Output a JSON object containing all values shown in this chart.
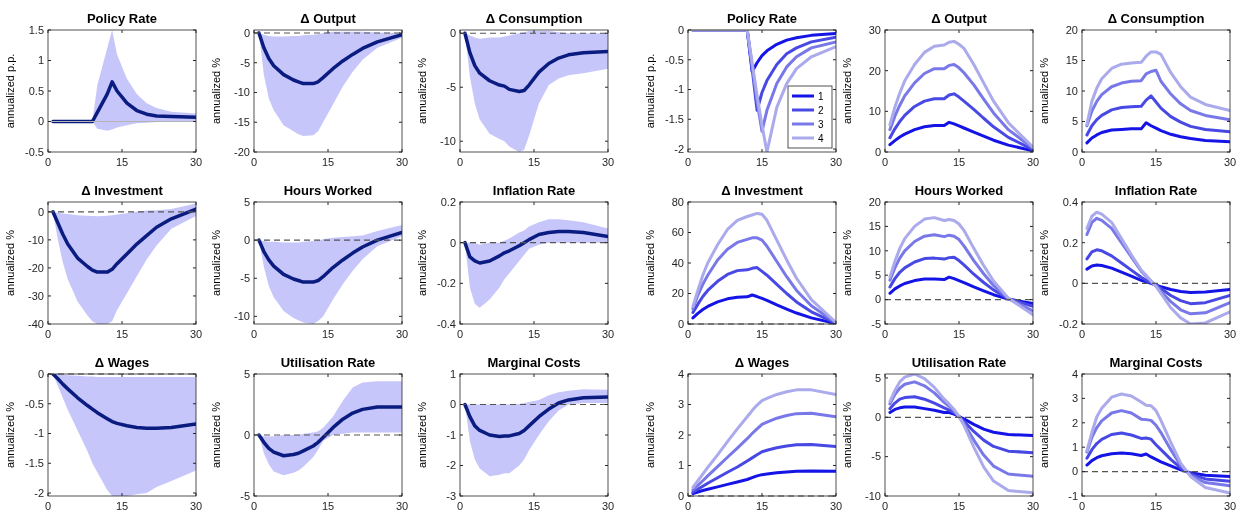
{
  "chart_data": [
    {
      "type": "line",
      "title": "Policy Rate",
      "ylabel": "annualized p.p.",
      "x": [
        1,
        2,
        3,
        4,
        6,
        8,
        9,
        10,
        12,
        13,
        14,
        16,
        18,
        20,
        22,
        25,
        30
      ],
      "xlim": [
        0,
        30
      ],
      "xticks": [
        0,
        15,
        30
      ],
      "ylim": [
        -0.5,
        1.5
      ],
      "yticks": [
        -0.5,
        0,
        0.5,
        1,
        1.5
      ],
      "ref_lines": [
        {
          "axis": "y",
          "value": 0,
          "color": "#b4b4b4",
          "line_style": "solid"
        }
      ],
      "series": [
        {
          "color": "#0b1c80",
          "values": [
            0,
            0,
            0,
            0,
            0,
            0,
            0,
            0.15,
            0.45,
            0.65,
            0.5,
            0.3,
            0.18,
            0.12,
            0.09,
            0.08,
            0.07
          ],
          "lower": [
            0,
            0,
            0,
            0,
            0,
            0,
            0,
            -0.12,
            -0.15,
            -0.13,
            -0.1,
            -0.06,
            -0.03,
            -0.02,
            -0.01,
            -0.01,
            -0.01
          ],
          "upper": [
            0,
            0,
            0,
            0,
            0,
            0,
            0,
            0.6,
            1.2,
            1.5,
            1.1,
            0.7,
            0.45,
            0.3,
            0.22,
            0.16,
            0.13
          ]
        }
      ]
    },
    {
      "type": "line",
      "title": "Δ Output",
      "ylabel": "annualized %",
      "x": [
        1,
        2,
        3,
        4,
        6,
        8,
        9,
        10,
        12,
        13,
        14,
        16,
        18,
        20,
        22,
        25,
        30
      ],
      "xlim": [
        0,
        30
      ],
      "xticks": [
        0,
        15,
        30
      ],
      "ylim": [
        -20,
        0.5
      ],
      "yticks": [
        -20,
        -15,
        -10,
        -5,
        0
      ],
      "ref_lines": [
        {
          "axis": "y",
          "value": 0,
          "color": "#555555",
          "line_style": "dashed"
        }
      ],
      "series": [
        {
          "color": "#0b1c80",
          "values": [
            0,
            -2.5,
            -4.3,
            -5.5,
            -7,
            -7.9,
            -8.2,
            -8.5,
            -8.5,
            -8.2,
            -7.5,
            -6,
            -4.7,
            -3.6,
            -2.6,
            -1.5,
            -0.3
          ],
          "lower": [
            0,
            -7,
            -11,
            -13,
            -15.5,
            -16.5,
            -17,
            -17.3,
            -17.2,
            -16.5,
            -15,
            -12,
            -9,
            -6.5,
            -4.5,
            -2.5,
            -0.8
          ],
          "upper": [
            0,
            -0.3,
            -0.5,
            -0.6,
            -0.6,
            -0.5,
            -0.5,
            -0.4,
            -0.3,
            -0.2,
            0,
            0.2,
            0.2,
            0.2,
            0.2,
            0.1,
            0
          ]
        }
      ]
    },
    {
      "type": "line",
      "title": "Δ Consumption",
      "ylabel": "annualized %",
      "x": [
        1,
        2,
        3,
        4,
        6,
        8,
        9,
        10,
        12,
        13,
        14,
        16,
        18,
        20,
        22,
        25,
        30
      ],
      "xlim": [
        0,
        30
      ],
      "xticks": [
        0,
        15,
        30
      ],
      "ylim": [
        -11,
        0.3
      ],
      "yticks": [
        -10,
        -5,
        0
      ],
      "ref_lines": [
        {
          "axis": "y",
          "value": 0,
          "color": "#555555",
          "line_style": "dashed"
        }
      ],
      "series": [
        {
          "color": "#0b1c80",
          "values": [
            0,
            -1.8,
            -3,
            -3.7,
            -4.4,
            -4.8,
            -4.9,
            -5.2,
            -5.4,
            -5.3,
            -4.8,
            -3.6,
            -2.8,
            -2.3,
            -2,
            -1.8,
            -1.7
          ],
          "lower": [
            0,
            -4,
            -6.5,
            -8,
            -9.3,
            -9.8,
            -10,
            -10.5,
            -11,
            -10.8,
            -9.5,
            -6.5,
            -4.8,
            -4.2,
            -3.9,
            -3.7,
            -3.3
          ],
          "upper": [
            0,
            -0.2,
            -0.4,
            -0.5,
            -0.4,
            -0.4,
            -0.3,
            -0.2,
            0,
            0.1,
            0.2,
            0.2,
            0.2,
            0.1,
            0,
            0,
            0
          ]
        }
      ]
    },
    {
      "type": "line",
      "title": "Δ Investment",
      "ylabel": "annualized %",
      "x": [
        1,
        2,
        3,
        4,
        6,
        8,
        9,
        10,
        12,
        13,
        14,
        16,
        18,
        20,
        22,
        25,
        30
      ],
      "xlim": [
        0,
        30
      ],
      "xticks": [
        0,
        15,
        30
      ],
      "ylim": [
        -40,
        3.5
      ],
      "yticks": [
        -40,
        -30,
        -20,
        -10,
        0
      ],
      "ref_lines": [
        {
          "axis": "y",
          "value": 0,
          "color": "#555555",
          "line_style": "dashed"
        }
      ],
      "series": [
        {
          "color": "#0b1c80",
          "values": [
            0,
            -4,
            -8,
            -11.5,
            -16.5,
            -19.5,
            -20.8,
            -21.5,
            -21.5,
            -20.5,
            -18.5,
            -15,
            -11.5,
            -8.5,
            -5.5,
            -2.5,
            1
          ],
          "lower": [
            0,
            -10,
            -18,
            -24,
            -32,
            -37,
            -39,
            -40,
            -40,
            -39,
            -35,
            -29,
            -23,
            -17,
            -12,
            -6,
            -1.5
          ],
          "upper": [
            0,
            -0.3,
            -0.6,
            -0.8,
            -1.2,
            -1.4,
            -1.5,
            -1.6,
            -1.4,
            -1.2,
            -1,
            -0.5,
            0,
            0.5,
            0.6,
            1,
            3
          ]
        }
      ]
    },
    {
      "type": "line",
      "title": "Hours Worked",
      "ylabel": "annualized %",
      "x": [
        1,
        2,
        3,
        4,
        6,
        8,
        9,
        10,
        12,
        13,
        14,
        16,
        18,
        20,
        22,
        25,
        30
      ],
      "xlim": [
        0,
        30
      ],
      "xticks": [
        0,
        15,
        30
      ],
      "ylim": [
        -11,
        5
      ],
      "yticks": [
        -10,
        -5,
        0,
        5
      ],
      "ref_lines": [
        {
          "axis": "y",
          "value": 0,
          "color": "#555555",
          "line_style": "dashed"
        }
      ],
      "series": [
        {
          "color": "#0b1c80",
          "values": [
            0,
            -1.5,
            -2.6,
            -3.4,
            -4.5,
            -5.1,
            -5.3,
            -5.5,
            -5.5,
            -5.3,
            -4.8,
            -3.6,
            -2.6,
            -1.7,
            -0.9,
            0,
            1
          ],
          "lower": [
            0,
            -3.5,
            -6,
            -7.5,
            -9.3,
            -10.2,
            -10.5,
            -10.8,
            -11,
            -10.6,
            -10,
            -7.8,
            -5.8,
            -4,
            -2.5,
            -0.8,
            0.5
          ],
          "upper": [
            0,
            -0.1,
            -0.2,
            -0.2,
            -0.3,
            -0.3,
            -0.3,
            -0.2,
            -0.1,
            0,
            0.1,
            0.3,
            0.4,
            0.5,
            0.6,
            1.2,
            2
          ]
        }
      ]
    },
    {
      "type": "line",
      "title": "Inflation Rate",
      "ylabel": "annualized %",
      "x": [
        1,
        2,
        3,
        4,
        6,
        8,
        9,
        10,
        12,
        13,
        14,
        16,
        18,
        20,
        22,
        25,
        30
      ],
      "xlim": [
        0,
        30
      ],
      "xticks": [
        0,
        15,
        30
      ],
      "ylim": [
        -0.4,
        0.2
      ],
      "yticks": [
        -0.4,
        -0.2,
        0,
        0.2
      ],
      "ref_lines": [
        {
          "axis": "y",
          "value": 0,
          "color": "#555555",
          "line_style": "dashed"
        }
      ],
      "series": [
        {
          "color": "#0b1c80",
          "values": [
            0,
            -0.07,
            -0.09,
            -0.1,
            -0.09,
            -0.065,
            -0.05,
            -0.04,
            -0.015,
            0,
            0.015,
            0.04,
            0.05,
            0.055,
            0.055,
            0.05,
            0.03
          ],
          "lower": [
            0,
            -0.22,
            -0.3,
            -0.32,
            -0.28,
            -0.22,
            -0.18,
            -0.15,
            -0.09,
            -0.06,
            -0.03,
            -0.01,
            0,
            0,
            0,
            0,
            0
          ],
          "upper": [
            0,
            0,
            0,
            -0.01,
            0,
            0,
            0.01,
            0.02,
            0.05,
            0.06,
            0.08,
            0.1,
            0.115,
            0.115,
            0.11,
            0.1,
            0.07
          ]
        }
      ]
    },
    {
      "type": "line",
      "title": "Δ Wages",
      "ylabel": "annualized %",
      "x": [
        1,
        2,
        3,
        4,
        6,
        8,
        9,
        10,
        12,
        13,
        14,
        16,
        18,
        20,
        22,
        25,
        30
      ],
      "xlim": [
        0,
        30
      ],
      "xticks": [
        0,
        15,
        30
      ],
      "ylim": [
        -2.05,
        0
      ],
      "yticks": [
        -2,
        -1.5,
        -1,
        -0.5,
        0
      ],
      "ref_lines": [
        {
          "axis": "y",
          "value": 0,
          "color": "#555555",
          "line_style": "dashed"
        }
      ],
      "series": [
        {
          "color": "#0b1c80",
          "values": [
            0,
            -0.08,
            -0.17,
            -0.25,
            -0.4,
            -0.53,
            -0.59,
            -0.65,
            -0.75,
            -0.8,
            -0.83,
            -0.87,
            -0.9,
            -0.91,
            -0.91,
            -0.9,
            -0.84
          ],
          "lower": [
            0,
            -0.2,
            -0.4,
            -0.6,
            -0.95,
            -1.3,
            -1.5,
            -1.65,
            -1.95,
            -2.05,
            -2.05,
            -2.05,
            -2.02,
            -2,
            -1.9,
            -1.8,
            -1.62
          ],
          "upper": [
            0,
            0,
            -0.01,
            -0.02,
            -0.03,
            -0.04,
            -0.04,
            -0.05,
            -0.05,
            -0.05,
            -0.05,
            -0.05,
            -0.05,
            -0.05,
            -0.05,
            -0.05,
            -0.05
          ]
        }
      ]
    },
    {
      "type": "line",
      "title": "Utilisation Rate",
      "ylabel": "annualized %",
      "x": [
        1,
        2,
        3,
        4,
        6,
        8,
        9,
        10,
        12,
        13,
        14,
        16,
        18,
        20,
        22,
        25,
        30
      ],
      "xlim": [
        0,
        30
      ],
      "xticks": [
        0,
        15,
        30
      ],
      "ylim": [
        -5,
        5
      ],
      "yticks": [
        -5,
        0,
        5
      ],
      "ref_lines": [
        {
          "axis": "y",
          "value": 0,
          "color": "#555555",
          "line_style": "dashed"
        }
      ],
      "series": [
        {
          "color": "#0b1c80",
          "values": [
            0,
            -0.6,
            -1.1,
            -1.4,
            -1.7,
            -1.6,
            -1.5,
            -1.3,
            -0.9,
            -0.6,
            -0.2,
            0.6,
            1.3,
            1.8,
            2.1,
            2.3,
            2.3
          ],
          "lower": [
            0,
            -1.5,
            -2.4,
            -3,
            -3.3,
            -3.1,
            -2.9,
            -2.6,
            -1.8,
            -1.2,
            -0.5,
            0,
            0.1,
            0.2,
            0.2,
            0.2,
            0.2
          ],
          "upper": [
            0,
            -0.1,
            -0.1,
            -0.1,
            0,
            0,
            0,
            0.1,
            0.2,
            0.3,
            0.6,
            1.5,
            2.8,
            3.9,
            4.3,
            4.4,
            4.4
          ]
        }
      ]
    },
    {
      "type": "line",
      "title": "Marginal Costs",
      "ylabel": "annualized %",
      "x": [
        1,
        2,
        3,
        4,
        6,
        8,
        9,
        10,
        12,
        13,
        14,
        16,
        18,
        20,
        22,
        25,
        30
      ],
      "xlim": [
        0,
        30
      ],
      "xticks": [
        0,
        15,
        30
      ],
      "ylim": [
        -3,
        1
      ],
      "yticks": [
        -3,
        -2,
        -1,
        0,
        1
      ],
      "ref_lines": [
        {
          "axis": "y",
          "value": 0,
          "color": "#555555",
          "line_style": "dashed"
        }
      ],
      "series": [
        {
          "color": "#0b1c80",
          "values": [
            0,
            -0.4,
            -0.7,
            -0.85,
            -1,
            -1.05,
            -1.03,
            -1.03,
            -0.95,
            -0.85,
            -0.7,
            -0.4,
            -0.15,
            0.05,
            0.15,
            0.22,
            0.25
          ],
          "lower": [
            0,
            -1.2,
            -1.8,
            -2.1,
            -2.35,
            -2.3,
            -2.25,
            -2.25,
            -2,
            -1.8,
            -1.5,
            -1,
            -0.55,
            -0.2,
            0,
            0.05,
            0.05
          ],
          "upper": [
            0,
            0,
            0,
            0,
            0,
            0,
            0,
            0,
            0.02,
            0.05,
            0.08,
            0.15,
            0.3,
            0.4,
            0.45,
            0.5,
            0.48
          ]
        }
      ]
    },
    {
      "type": "line",
      "title": "Policy Rate",
      "ylabel": "annualized p.p.",
      "legend": "bottom right",
      "x": [
        1,
        2,
        3,
        4,
        6,
        8,
        10,
        12,
        13,
        14,
        15,
        16,
        18,
        20,
        22,
        25,
        30
      ],
      "xlim": [
        0,
        30
      ],
      "xticks": [
        0,
        15,
        30
      ],
      "ylim": [
        -2.05,
        0
      ],
      "yticks": [
        -2,
        -1.5,
        -1,
        -0.5,
        0
      ],
      "ref_lines": [
        {
          "axis": "y",
          "value": 0,
          "color": "#bbbbbb",
          "line_style": "solid"
        }
      ],
      "series": [
        {
          "name": "1",
          "color": "#1414e6",
          "values": [
            0,
            0,
            0,
            0,
            0,
            0,
            0,
            0,
            -0.7,
            -0.55,
            -0.43,
            -0.35,
            -0.24,
            -0.17,
            -0.13,
            -0.09,
            -0.06
          ]
        },
        {
          "name": "2",
          "color": "#4848e4",
          "values": [
            0,
            0,
            0,
            0,
            0,
            0,
            0,
            0,
            -0.65,
            -1.35,
            -1.05,
            -0.85,
            -0.58,
            -0.4,
            -0.3,
            -0.2,
            -0.12
          ]
        },
        {
          "name": "3",
          "color": "#7878e8",
          "values": [
            0,
            0,
            0,
            0,
            0,
            0,
            0,
            0,
            -0.6,
            -1.2,
            -1.7,
            -1.35,
            -0.9,
            -0.62,
            -0.45,
            -0.3,
            -0.2
          ]
        },
        {
          "name": "4",
          "color": "#aaaaec",
          "values": [
            0,
            0,
            0,
            0,
            0,
            0,
            0,
            0,
            -0.55,
            -1.1,
            -1.6,
            -2.05,
            -1.3,
            -0.9,
            -0.65,
            -0.45,
            -0.28
          ]
        }
      ]
    },
    {
      "type": "line",
      "title": "Δ Output",
      "ylabel": "annualized %",
      "x": [
        1,
        2,
        3,
        4,
        6,
        8,
        10,
        12,
        13,
        14,
        15,
        16,
        18,
        20,
        22,
        25,
        30
      ],
      "xlim": [
        0,
        30
      ],
      "xticks": [
        0,
        15,
        30
      ],
      "ylim": [
        0,
        30
      ],
      "yticks": [
        0,
        10,
        20,
        30
      ],
      "series": [
        {
          "color": "#1414e6",
          "values": [
            1.8,
            2.8,
            3.7,
            4.4,
            5.5,
            6.2,
            6.5,
            6.5,
            7.3,
            6.9,
            6.4,
            5.9,
            4.9,
            3.9,
            2.9,
            1.7,
            0.3
          ]
        },
        {
          "color": "#4848e4",
          "values": [
            3.5,
            5.7,
            7.5,
            9,
            11.2,
            12.5,
            13.1,
            13.1,
            14,
            14.3,
            13.5,
            12.5,
            10.5,
            8.3,
            6.2,
            3.6,
            0.6
          ]
        },
        {
          "color": "#7878e8",
          "values": [
            5.5,
            8.8,
            11.5,
            13.8,
            17,
            19.3,
            20.5,
            20.5,
            21.3,
            21.5,
            20.7,
            19.5,
            16.5,
            13,
            9.6,
            5.5,
            0.9
          ]
        },
        {
          "color": "#aaaaec",
          "values": [
            6.7,
            11,
            14.5,
            17.5,
            21.5,
            24.5,
            26,
            26.3,
            27,
            27.2,
            26.5,
            25.5,
            21.5,
            17,
            12.5,
            7.2,
            1.2
          ]
        }
      ]
    },
    {
      "type": "line",
      "title": "Δ Consumption",
      "ylabel": "annualized %",
      "x": [
        1,
        2,
        3,
        4,
        6,
        8,
        10,
        12,
        13,
        14,
        15,
        16,
        18,
        20,
        22,
        25,
        30
      ],
      "xlim": [
        0,
        30
      ],
      "xticks": [
        0,
        15,
        30
      ],
      "ylim": [
        0,
        20
      ],
      "yticks": [
        0,
        5,
        10,
        15,
        20
      ],
      "series": [
        {
          "color": "#1414e6",
          "values": [
            1.5,
            2.3,
            2.8,
            3.2,
            3.6,
            3.7,
            3.8,
            3.8,
            4.8,
            4.3,
            3.9,
            3.5,
            2.9,
            2.5,
            2.2,
            1.9,
            1.7
          ]
        },
        {
          "color": "#4848e4",
          "values": [
            2.8,
            4.3,
            5.3,
            6,
            6.9,
            7.3,
            7.4,
            7.5,
            8.5,
            9.2,
            8.2,
            7.2,
            5.8,
            4.9,
            4.2,
            3.7,
            3.3
          ]
        },
        {
          "color": "#7878e8",
          "values": [
            4.3,
            6.7,
            8.3,
            9.4,
            10.7,
            11.3,
            11.6,
            11.7,
            12.8,
            13.2,
            13.4,
            11.6,
            9.5,
            7.9,
            6.8,
            6,
            5.3
          ]
        },
        {
          "color": "#aaaaec",
          "values": [
            4.5,
            8.3,
            10.5,
            12,
            13.7,
            14.4,
            14.6,
            14.7,
            15.7,
            16.4,
            16.4,
            16,
            13,
            10.7,
            9,
            7.8,
            6.8
          ]
        }
      ]
    },
    {
      "type": "line",
      "title": "Δ Investment",
      "ylabel": "annualized %",
      "x": [
        1,
        2,
        3,
        4,
        6,
        8,
        10,
        12,
        13,
        14,
        15,
        16,
        18,
        20,
        22,
        25,
        30
      ],
      "xlim": [
        0,
        30
      ],
      "xticks": [
        0,
        15,
        30
      ],
      "ylim": [
        0,
        80
      ],
      "yticks": [
        0,
        20,
        40,
        60,
        80
      ],
      "ref_lines": [
        {
          "axis": "y",
          "value": 0,
          "color": "#555555",
          "line_style": "dashed"
        }
      ],
      "series": [
        {
          "color": "#1414e6",
          "values": [
            4,
            7,
            9.5,
            11.5,
            14.5,
            16.5,
            17.5,
            17.8,
            19,
            18,
            16.8,
            15.5,
            12.5,
            9.8,
            7.2,
            4,
            0.3
          ]
        },
        {
          "color": "#4848e4",
          "values": [
            7.5,
            13,
            18,
            22,
            28,
            32.5,
            35,
            35.5,
            36.5,
            37,
            34.5,
            32,
            26,
            20,
            14.5,
            8,
            0.5
          ]
        },
        {
          "color": "#7878e8",
          "values": [
            10,
            19,
            26,
            32,
            42,
            49,
            53.5,
            55.5,
            56.5,
            56.5,
            55,
            51,
            41,
            31,
            22,
            12,
            0.8
          ]
        },
        {
          "color": "#aaaaec",
          "values": [
            11.5,
            22,
            32,
            40,
            52,
            62,
            68,
            70.5,
            71.5,
            72.5,
            72,
            68,
            55,
            42,
            30,
            16,
            1
          ]
        }
      ]
    },
    {
      "type": "line",
      "title": "Hours Worked",
      "ylabel": "annualized %",
      "x": [
        1,
        2,
        3,
        4,
        6,
        8,
        10,
        12,
        13,
        14,
        15,
        16,
        18,
        20,
        22,
        25,
        30
      ],
      "xlim": [
        0,
        30
      ],
      "xticks": [
        0,
        15,
        30
      ],
      "ylim": [
        -5,
        20
      ],
      "yticks": [
        -5,
        0,
        5,
        10,
        15,
        20
      ],
      "ref_lines": [
        {
          "axis": "y",
          "value": 0,
          "color": "#555555",
          "line_style": "dashed"
        }
      ],
      "series": [
        {
          "color": "#1414e6",
          "values": [
            1.3,
            2.2,
            2.8,
            3.3,
            3.9,
            4.2,
            4.2,
            4.1,
            4.6,
            4.3,
            3.9,
            3.5,
            2.6,
            1.8,
            1,
            0.1,
            -0.8
          ]
        },
        {
          "color": "#4848e4",
          "values": [
            2.6,
            4.3,
            5.6,
            6.5,
            7.7,
            8.4,
            8.5,
            8.3,
            8.6,
            8.7,
            8,
            7.1,
            5.2,
            3.5,
            2,
            0.2,
            -1.4
          ]
        },
        {
          "color": "#7878e8",
          "values": [
            4,
            6.5,
            8.5,
            10,
            11.9,
            13,
            13.3,
            12.9,
            13.2,
            13,
            12.3,
            11,
            8,
            5.3,
            2.9,
            0.2,
            -2.3
          ]
        },
        {
          "color": "#aaaaec",
          "values": [
            4.6,
            7.8,
            10.5,
            12.5,
            15,
            16.5,
            16.8,
            16.2,
            16.4,
            16.2,
            15.5,
            14.2,
            10.5,
            7,
            3.8,
            0.3,
            -3.1
          ]
        }
      ]
    },
    {
      "type": "line",
      "title": "Inflation Rate",
      "ylabel": "annualized %",
      "x": [
        1,
        2,
        3,
        4,
        6,
        8,
        10,
        12,
        13,
        14,
        15,
        16,
        18,
        20,
        22,
        25,
        30
      ],
      "xlim": [
        0,
        30
      ],
      "xticks": [
        0,
        15,
        30
      ],
      "ylim": [
        -0.2,
        0.4
      ],
      "yticks": [
        -0.2,
        0,
        0.2,
        0.4
      ],
      "ref_lines": [
        {
          "axis": "y",
          "value": 0,
          "color": "#555555",
          "line_style": "dashed"
        }
      ],
      "series": [
        {
          "color": "#1414e6",
          "values": [
            0.07,
            0.085,
            0.09,
            0.088,
            0.075,
            0.055,
            0.035,
            0.015,
            0.007,
            0,
            -0.008,
            -0.017,
            -0.03,
            -0.04,
            -0.045,
            -0.043,
            -0.03
          ]
        },
        {
          "color": "#4848e4",
          "values": [
            0.12,
            0.155,
            0.165,
            0.16,
            0.135,
            0.1,
            0.065,
            0.03,
            0.015,
            0.003,
            -0.01,
            -0.025,
            -0.06,
            -0.085,
            -0.1,
            -0.095,
            -0.06
          ]
        },
        {
          "color": "#7878e8",
          "values": [
            0.24,
            0.3,
            0.32,
            0.31,
            0.27,
            0.2,
            0.13,
            0.06,
            0.035,
            0.01,
            -0.01,
            -0.04,
            -0.09,
            -0.13,
            -0.15,
            -0.145,
            -0.095
          ]
        },
        {
          "color": "#aaaaec",
          "values": [
            0.27,
            0.33,
            0.35,
            0.34,
            0.3,
            0.22,
            0.14,
            0.065,
            0.04,
            0.012,
            -0.015,
            -0.05,
            -0.12,
            -0.17,
            -0.2,
            -0.195,
            -0.14
          ]
        }
      ]
    },
    {
      "type": "line",
      "title": "Δ Wages",
      "ylabel": "annualized %",
      "x": [
        1,
        2,
        3,
        4,
        6,
        8,
        10,
        12,
        13,
        14,
        15,
        16,
        18,
        20,
        22,
        25,
        30
      ],
      "xlim": [
        0,
        30
      ],
      "xticks": [
        0,
        15,
        30
      ],
      "ylim": [
        0,
        4
      ],
      "yticks": [
        0,
        1,
        2,
        3,
        4
      ],
      "ref_lines": [
        {
          "axis": "y",
          "value": 0,
          "color": "#555555",
          "line_style": "dashed"
        }
      ],
      "series": [
        {
          "color": "#1414e6",
          "values": [
            0.08,
            0.13,
            0.18,
            0.22,
            0.3,
            0.38,
            0.46,
            0.54,
            0.6,
            0.66,
            0.7,
            0.72,
            0.76,
            0.79,
            0.81,
            0.82,
            0.81
          ]
        },
        {
          "color": "#4848e4",
          "values": [
            0.12,
            0.22,
            0.32,
            0.42,
            0.6,
            0.78,
            0.95,
            1.15,
            1.25,
            1.35,
            1.45,
            1.5,
            1.58,
            1.64,
            1.68,
            1.69,
            1.62
          ]
        },
        {
          "color": "#7878e8",
          "values": [
            0.2,
            0.35,
            0.5,
            0.66,
            0.96,
            1.27,
            1.57,
            1.88,
            2.05,
            2.2,
            2.35,
            2.42,
            2.55,
            2.64,
            2.7,
            2.71,
            2.6
          ]
        },
        {
          "color": "#aaaaec",
          "values": [
            0.28,
            0.5,
            0.72,
            0.94,
            1.35,
            1.78,
            2.2,
            2.6,
            2.8,
            2.98,
            3.13,
            3.2,
            3.33,
            3.42,
            3.48,
            3.48,
            3.33
          ]
        }
      ]
    },
    {
      "type": "line",
      "title": "Utilisation Rate",
      "ylabel": "annualized %",
      "x": [
        1,
        2,
        3,
        4,
        6,
        8,
        10,
        12,
        13,
        14,
        15,
        16,
        18,
        20,
        22,
        25,
        30
      ],
      "xlim": [
        0,
        30
      ],
      "xticks": [
        0,
        15,
        30
      ],
      "ylim": [
        -10,
        5.5
      ],
      "yticks": [
        -10,
        -5,
        0,
        5
      ],
      "ref_lines": [
        {
          "axis": "y",
          "value": 0,
          "color": "#555555",
          "line_style": "dashed"
        }
      ],
      "series": [
        {
          "color": "#1414e6",
          "values": [
            0.6,
            1,
            1.2,
            1.3,
            1.3,
            1.1,
            0.9,
            0.6,
            0.6,
            0.4,
            0.1,
            -0.2,
            -0.9,
            -1.5,
            -1.9,
            -2.2,
            -2.3
          ]
        },
        {
          "color": "#4848e4",
          "values": [
            1.1,
            1.8,
            2.3,
            2.5,
            2.6,
            2.3,
            1.8,
            1.2,
            0.9,
            0.6,
            0.1,
            -0.5,
            -1.8,
            -2.9,
            -3.7,
            -4.3,
            -4.5
          ]
        },
        {
          "color": "#7878e8",
          "values": [
            1.7,
            2.9,
            3.7,
            4.2,
            4.5,
            4,
            3.1,
            1.9,
            1.4,
            0.8,
            0.1,
            -0.8,
            -2.9,
            -4.8,
            -6.2,
            -7.2,
            -7.5
          ]
        },
        {
          "color": "#aaaaec",
          "values": [
            2,
            3.4,
            4.5,
            5.1,
            5.5,
            4.9,
            3.8,
            2.3,
            1.7,
            1,
            0.1,
            -1,
            -3.8,
            -6.3,
            -8.1,
            -9.3,
            -9.6
          ]
        }
      ]
    },
    {
      "type": "line",
      "title": "Marginal Costs",
      "ylabel": "annualized %",
      "x": [
        1,
        2,
        3,
        4,
        6,
        8,
        10,
        12,
        13,
        14,
        15,
        16,
        18,
        20,
        22,
        25,
        30
      ],
      "xlim": [
        0,
        30
      ],
      "xticks": [
        0,
        15,
        30
      ],
      "ylim": [
        -1,
        4
      ],
      "yticks": [
        -1,
        0,
        1,
        2,
        3,
        4
      ],
      "ref_lines": [
        {
          "axis": "y",
          "value": 0,
          "color": "#555555",
          "line_style": "dashed"
        }
      ],
      "series": [
        {
          "color": "#1414e6",
          "values": [
            0.27,
            0.45,
            0.57,
            0.65,
            0.73,
            0.76,
            0.73,
            0.66,
            0.72,
            0.6,
            0.5,
            0.4,
            0.23,
            0.07,
            -0.05,
            -0.15,
            -0.2
          ]
        },
        {
          "color": "#4848e4",
          "values": [
            0.55,
            0.9,
            1.15,
            1.32,
            1.52,
            1.58,
            1.5,
            1.36,
            1.38,
            1.33,
            1.1,
            0.9,
            0.5,
            0.15,
            -0.1,
            -0.3,
            -0.4
          ]
        },
        {
          "color": "#7878e8",
          "values": [
            0.8,
            1.4,
            1.8,
            2.08,
            2.4,
            2.5,
            2.4,
            2.15,
            2.13,
            2.1,
            1.9,
            1.6,
            0.9,
            0.25,
            -0.15,
            -0.45,
            -0.58
          ]
        },
        {
          "color": "#aaaaec",
          "values": [
            0.85,
            1.6,
            2.25,
            2.6,
            3.05,
            3.18,
            3.1,
            2.85,
            2.72,
            2.7,
            2.5,
            2.1,
            1.2,
            0.35,
            -0.2,
            -0.65,
            -0.88
          ]
        }
      ]
    }
  ]
}
